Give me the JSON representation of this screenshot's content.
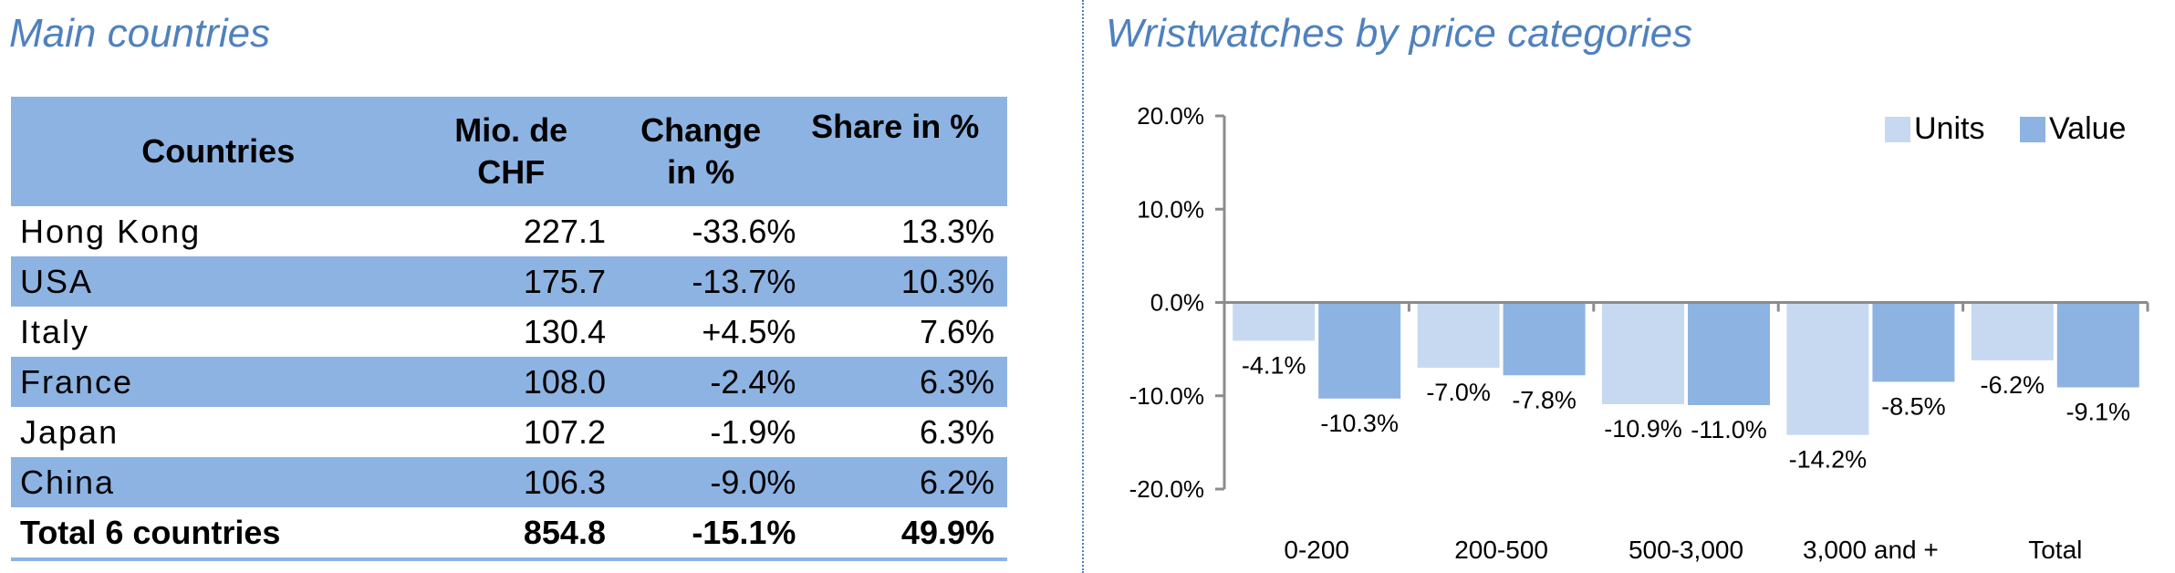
{
  "left_title": "Main countries",
  "right_title": "Wristwatches by price categories",
  "table": {
    "headers": {
      "countries": "Countries",
      "mio_line1": "Mio. de",
      "mio_line2": "CHF",
      "change_line1": "Change",
      "change_line2": "in %",
      "share": "Share in %"
    },
    "rows": [
      {
        "name": "Hong Kong",
        "mio": "227.1",
        "change": "-33.6%",
        "share": "13.3%"
      },
      {
        "name": "USA",
        "mio": "175.7",
        "change": "-13.7%",
        "share": "10.3%"
      },
      {
        "name": "Italy",
        "mio": "130.4",
        "change": "+4.5%",
        "share": "7.6%"
      },
      {
        "name": "France",
        "mio": "108.0",
        "change": "-2.4%",
        "share": "6.3%"
      },
      {
        "name": "Japan",
        "mio": "107.2",
        "change": "-1.9%",
        "share": "6.3%"
      },
      {
        "name": "China",
        "mio": "106.3",
        "change": "-9.0%",
        "share": "6.2%"
      }
    ],
    "total": {
      "name": "Total 6 countries",
      "mio": "854.8",
      "change": "-15.1%",
      "share": "49.9%"
    },
    "band_color": "#8db3e2"
  },
  "chart_data": {
    "type": "bar",
    "title": "Wristwatches by price categories",
    "categories": [
      "0-200",
      "200-500",
      "500-3,000",
      "3,000 and +",
      "Total"
    ],
    "series": [
      {
        "name": "Units",
        "values": [
          -4.1,
          -7.0,
          -10.9,
          -14.2,
          -6.2
        ],
        "labels": [
          "-4.1%",
          "-7.0%",
          "-10.9%",
          "-14.2%",
          "-6.2%"
        ],
        "color": "#c6d9f1"
      },
      {
        "name": "Value",
        "values": [
          -10.3,
          -7.8,
          -11.0,
          -8.5,
          -9.1
        ],
        "labels": [
          "-10.3%",
          "-7.8%",
          "-11.0%",
          "-8.5%",
          "-9.1%"
        ],
        "color": "#8db3e2"
      }
    ],
    "ylim": [
      -20,
      20
    ],
    "yticks": [
      20,
      10,
      0,
      -10,
      -20
    ],
    "ytick_labels": [
      "20.0%",
      "10.0%",
      "0.0%",
      "-10.0%",
      "-20.0%"
    ],
    "legend_position": "top-right",
    "grid": false
  }
}
